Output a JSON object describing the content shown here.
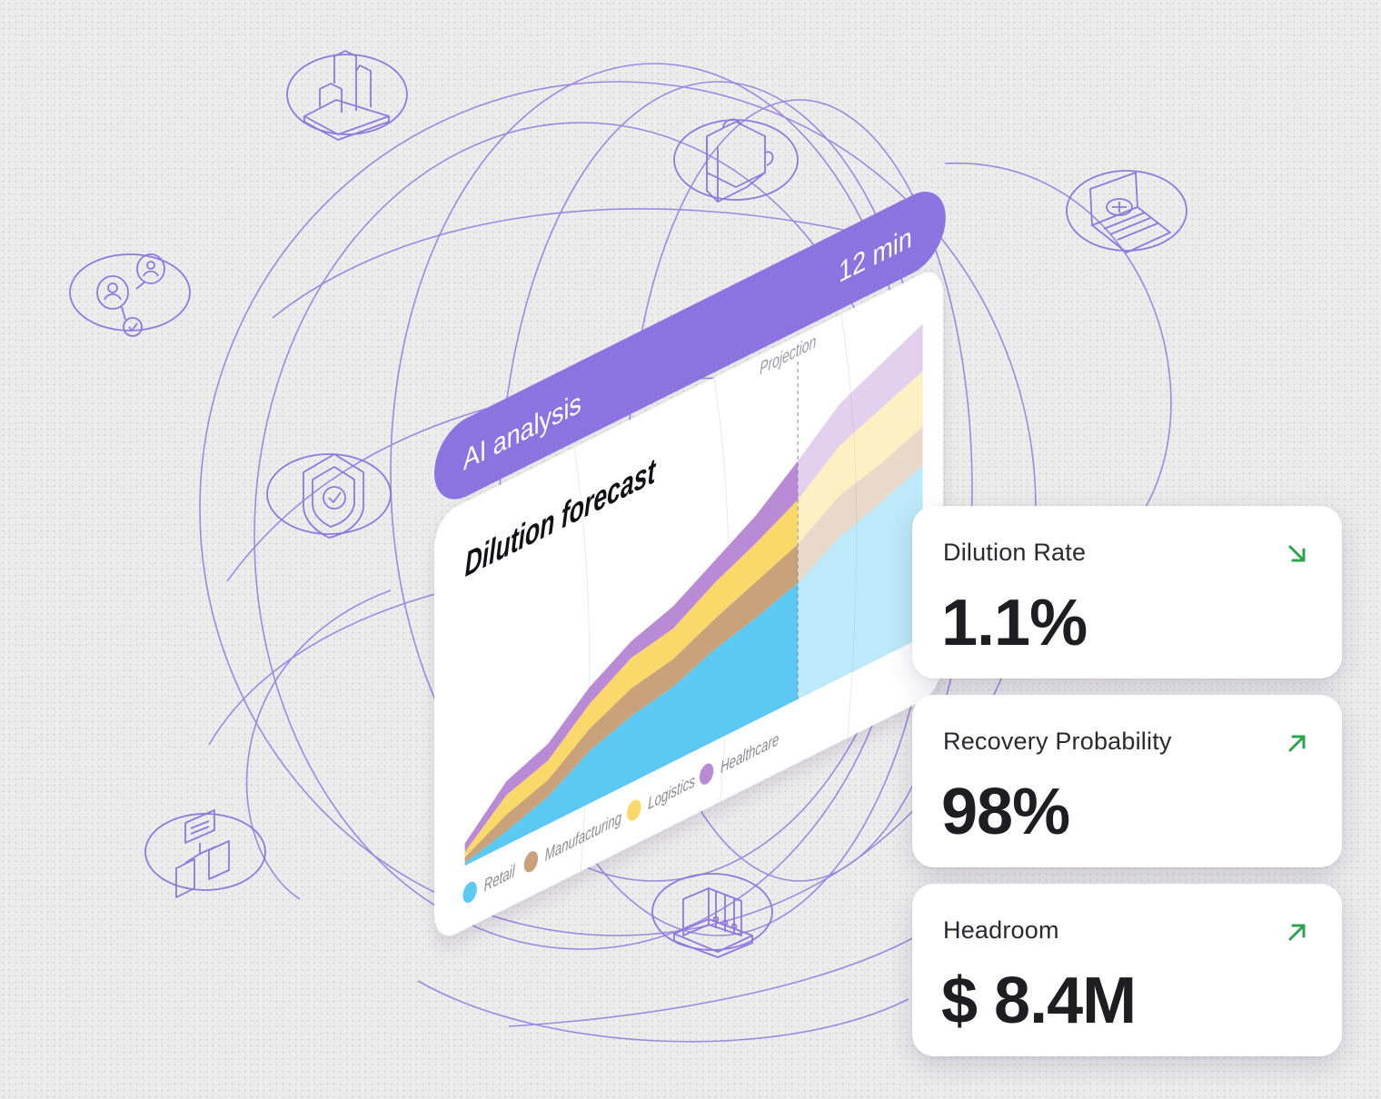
{
  "colors": {
    "accent": "#8b74e0",
    "outline": "#8d7ade",
    "arrow_green": "#2da44e",
    "retail": "#5cc9f2",
    "manufacturing": "#c9a17a",
    "logistics": "#fad96a",
    "healthcare": "#b98ad6"
  },
  "banner": {
    "label": "AI analysis",
    "duration": "12 min"
  },
  "chart_data": {
    "type": "area",
    "title": "Dilution forecast",
    "stacked": true,
    "x": [
      0,
      1,
      2,
      3,
      4,
      5,
      6,
      7,
      8,
      9,
      10,
      11
    ],
    "projection_label": "Projection",
    "projection_start": 8,
    "legend_position": "bottom",
    "series": [
      {
        "name": "Retail",
        "color": "#5cc9f2",
        "values": [
          1,
          5,
          10,
          19,
          24,
          27,
          33,
          37,
          42,
          51,
          56,
          62
        ]
      },
      {
        "name": "Manufacturing",
        "color": "#c9a17a",
        "values": [
          2,
          6,
          6,
          8,
          10,
          10,
          11,
          13,
          14,
          15,
          14,
          14
        ]
      },
      {
        "name": "Logistics",
        "color": "#fad96a",
        "values": [
          2,
          7,
          7,
          9,
          11,
          11,
          13,
          14,
          16,
          18,
          20,
          20
        ]
      },
      {
        "name": "Healthcare",
        "color": "#b98ad6",
        "values": [
          3,
          5,
          6,
          6,
          6,
          8,
          8,
          10,
          14,
          15,
          16,
          17
        ]
      }
    ],
    "ylim": [
      0,
      118
    ]
  },
  "stats": [
    {
      "label": "Dilution Rate",
      "value": "1.1%",
      "trend": "down"
    },
    {
      "label": "Recovery Probability",
      "value": "98%",
      "trend": "up"
    },
    {
      "label": "Headroom",
      "value": "$ 8.4M",
      "trend": "up"
    }
  ],
  "icons": [
    "bar-chart-icon",
    "puzzle-icon",
    "laptop-payment-icon",
    "people-network-icon",
    "shield-check-icon",
    "documents-hierarchy-icon",
    "binders-icon"
  ]
}
